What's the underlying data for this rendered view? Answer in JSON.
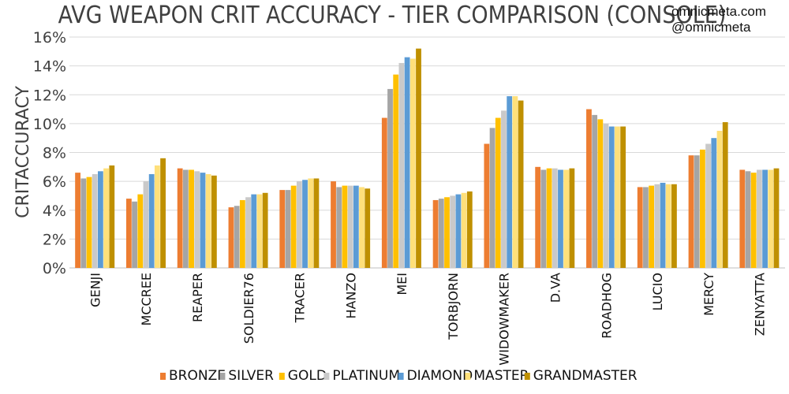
{
  "header": {
    "brand_line1": "omnicmeta.com",
    "brand_line2": "@omnicmeta"
  },
  "chart_data": {
    "type": "bar",
    "title": "AVG WEAPON CRIT ACCURACY - TIER COMPARISON (CONSOLE)",
    "xlabel": "",
    "ylabel": "CRITACCURACY",
    "ylim": [
      0,
      16
    ],
    "yticks": [
      0,
      2,
      4,
      6,
      8,
      10,
      12,
      14,
      16
    ],
    "ytick_suffix": "%",
    "grid": true,
    "legend_position": "bottom",
    "categories": [
      "GENJI",
      "MCCREE",
      "REAPER",
      "SOLDIER76",
      "TRACER",
      "HANZO",
      "MEI",
      "TORBJORN",
      "WIDOWMAKER",
      "D.VA",
      "ROADHOG",
      "LUCIO",
      "MERCY",
      "ZENYATTA"
    ],
    "series": [
      {
        "name": "BRONZE",
        "color": "#ED7D31",
        "values": [
          6.6,
          4.8,
          6.9,
          4.2,
          5.4,
          6.0,
          10.4,
          4.7,
          8.6,
          7.0,
          11.0,
          5.6,
          7.8,
          6.8
        ]
      },
      {
        "name": "SILVER",
        "color": "#A5A5A5",
        "values": [
          6.2,
          4.6,
          6.8,
          4.3,
          5.4,
          5.6,
          12.4,
          4.8,
          9.7,
          6.8,
          10.6,
          5.6,
          7.8,
          6.7
        ]
      },
      {
        "name": "GOLD",
        "color": "#FFC000",
        "values": [
          6.3,
          5.1,
          6.8,
          4.7,
          5.7,
          5.7,
          13.4,
          4.9,
          10.4,
          6.9,
          10.3,
          5.7,
          8.2,
          6.6
        ]
      },
      {
        "name": "PLATINUM",
        "color": "#C9C9C9",
        "values": [
          6.5,
          6.0,
          6.7,
          4.9,
          6.0,
          5.7,
          14.2,
          5.0,
          10.9,
          6.9,
          10.0,
          5.8,
          8.6,
          6.8
        ]
      },
      {
        "name": "DIAMOND",
        "color": "#5B9BD5",
        "values": [
          6.7,
          6.5,
          6.6,
          5.1,
          6.1,
          5.7,
          14.6,
          5.1,
          11.9,
          6.8,
          9.8,
          5.9,
          9.0,
          6.8
        ]
      },
      {
        "name": "MASTER",
        "color": "#FFE07A",
        "values": [
          6.9,
          7.1,
          6.5,
          5.1,
          6.2,
          5.6,
          14.5,
          5.2,
          11.9,
          6.8,
          9.8,
          5.8,
          9.5,
          6.8
        ]
      },
      {
        "name": "GRANDMASTER",
        "color": "#BF9000",
        "values": [
          7.1,
          7.6,
          6.4,
          5.2,
          6.2,
          5.5,
          15.2,
          5.3,
          11.6,
          6.9,
          9.8,
          5.8,
          10.1,
          6.9
        ]
      }
    ]
  }
}
